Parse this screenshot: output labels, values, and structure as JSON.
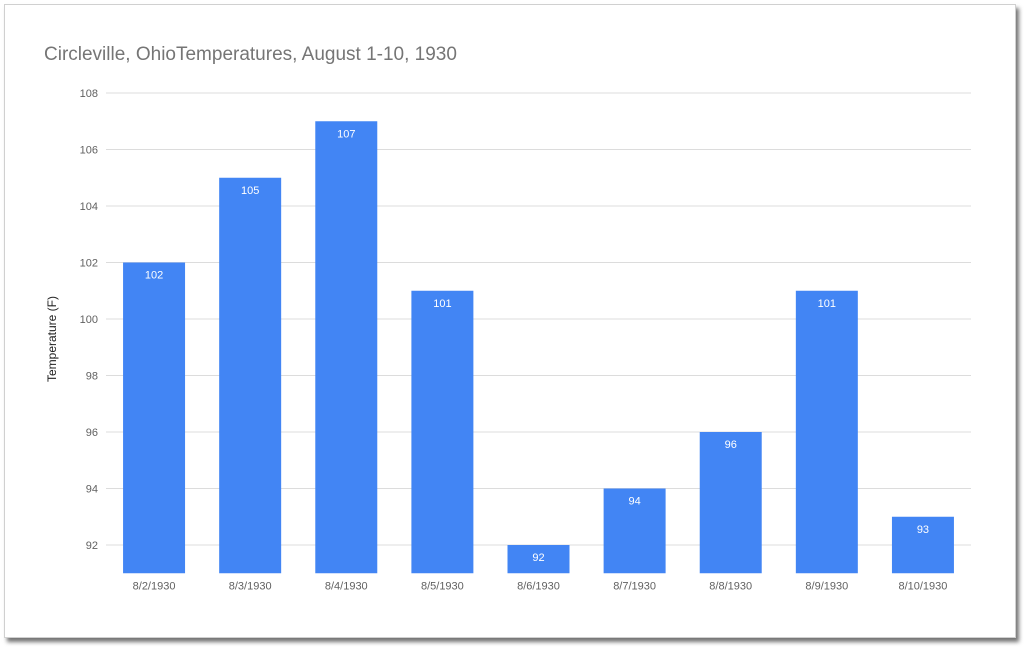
{
  "chart_data": {
    "type": "bar",
    "title": "Circleville, OhioTemperatures, August 1-10, 1930",
    "xlabel": "",
    "ylabel": "Temperature (F)",
    "categories": [
      "8/2/1930",
      "8/3/1930",
      "8/4/1930",
      "8/5/1930",
      "8/6/1930",
      "8/7/1930",
      "8/8/1930",
      "8/9/1930",
      "8/10/1930"
    ],
    "values": [
      102,
      105,
      107,
      101,
      92,
      94,
      96,
      101,
      93
    ],
    "ylim": [
      91,
      108
    ],
    "yticks": [
      92,
      94,
      96,
      98,
      100,
      102,
      104,
      106,
      108
    ],
    "grid": true,
    "legend": "none",
    "bar_color": "#4285f4",
    "data_labels": true
  }
}
